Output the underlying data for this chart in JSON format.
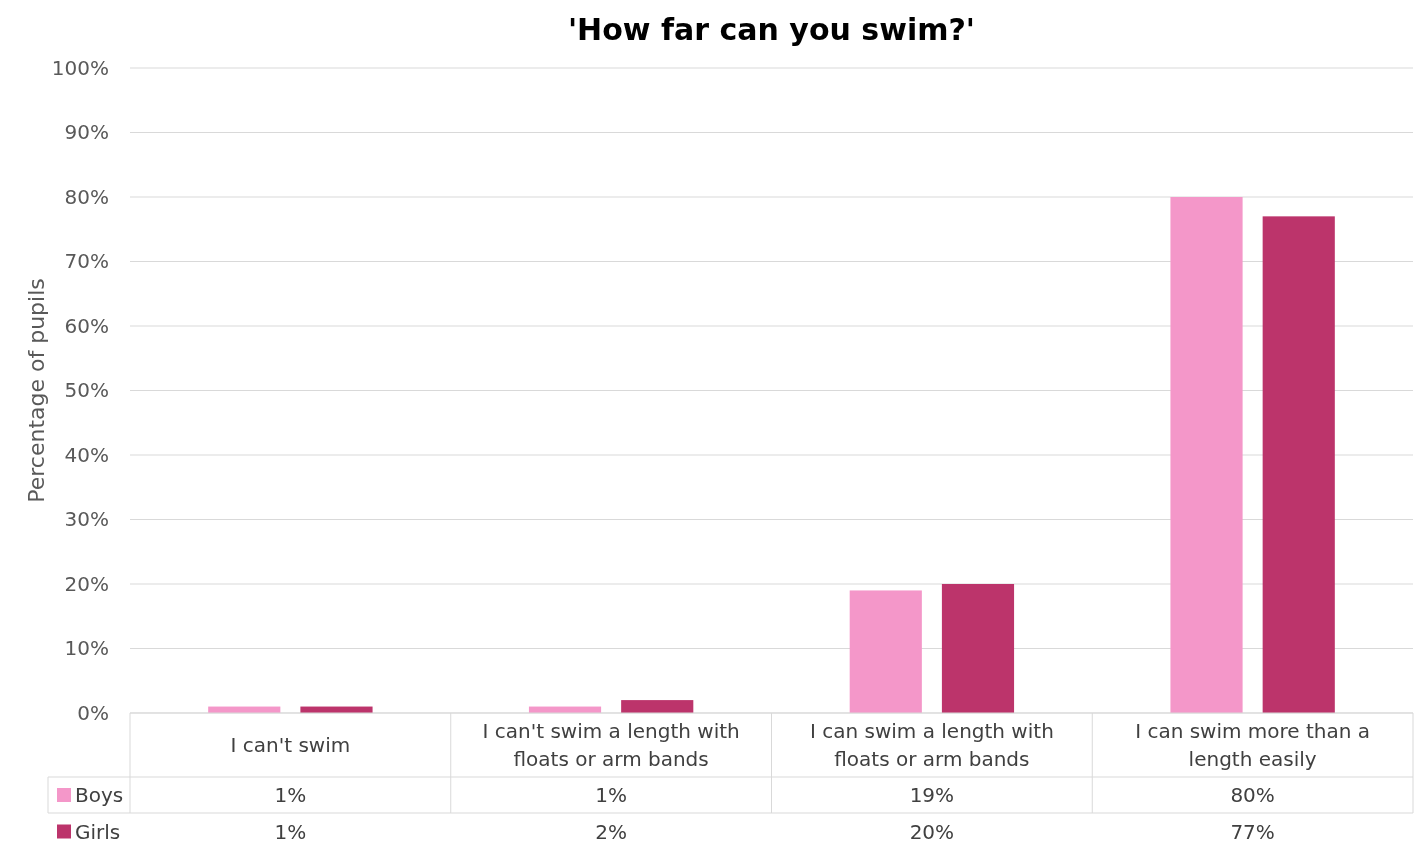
{
  "chart_data": {
    "type": "bar",
    "title": "'How far can you swim?'",
    "ylabel": "Percentage of pupils",
    "categories": [
      "I can't swim",
      "I can't swim a length with floats or arm bands",
      "I can swim a length with floats or arm bands",
      "I can swim more than a length easily"
    ],
    "series": [
      {
        "name": "Boys",
        "color": "#f497c9",
        "values": [
          1,
          1,
          19,
          80
        ],
        "value_labels": [
          "1%",
          "1%",
          "19%",
          "80%"
        ]
      },
      {
        "name": "Girls",
        "color": "#bc346b",
        "values": [
          1,
          2,
          20,
          77
        ],
        "value_labels": [
          "1%",
          "2%",
          "20%",
          "77%"
        ]
      }
    ],
    "ylim": [
      0,
      100
    ],
    "yticks": [
      {
        "value": 0,
        "label": "0%"
      },
      {
        "value": 10,
        "label": "10%"
      },
      {
        "value": 20,
        "label": "20%"
      },
      {
        "value": 30,
        "label": "30%"
      },
      {
        "value": 40,
        "label": "40%"
      },
      {
        "value": 50,
        "label": "50%"
      },
      {
        "value": 60,
        "label": "60%"
      },
      {
        "value": 70,
        "label": "70%"
      },
      {
        "value": 80,
        "label": "80%"
      },
      {
        "value": 90,
        "label": "90%"
      },
      {
        "value": 100,
        "label": "100%"
      }
    ],
    "grid": "y",
    "legend": "bottom left"
  }
}
